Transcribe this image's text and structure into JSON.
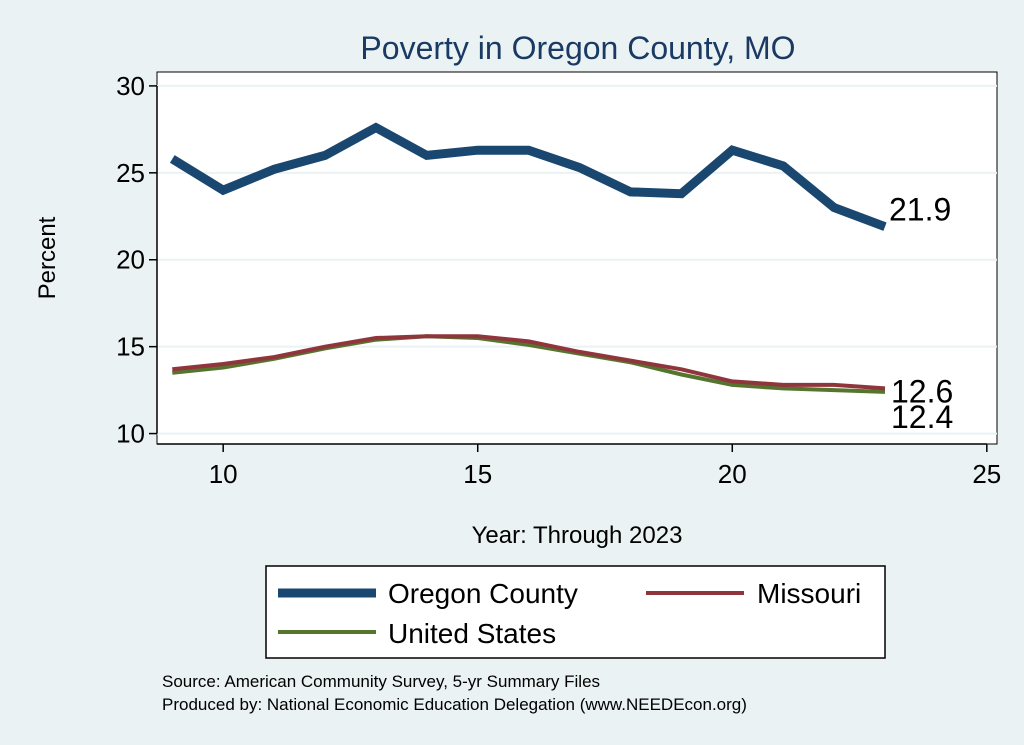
{
  "chart_data": {
    "type": "line",
    "title": "Poverty in Oregon County, MO",
    "xlabel": "Year: Through 2023",
    "ylabel": "Percent",
    "xlim": [
      8.7,
      25.2
    ],
    "ylim": [
      9.4,
      30.8
    ],
    "xticks": [
      10,
      15,
      20,
      25
    ],
    "yticks": [
      10,
      15,
      20,
      25,
      30
    ],
    "grid": true,
    "legend_position": "bottom",
    "series": [
      {
        "name": "Oregon County",
        "color": "#1a476f",
        "width": "thick",
        "x": [
          9,
          10,
          11,
          12,
          13,
          14,
          15,
          16,
          17,
          18,
          19,
          20,
          21,
          22,
          23
        ],
        "y": [
          25.8,
          24.0,
          25.2,
          26.0,
          27.6,
          26.0,
          26.3,
          26.3,
          25.3,
          23.9,
          23.8,
          26.3,
          25.4,
          23.0,
          21.9
        ],
        "end_label": "21.9"
      },
      {
        "name": "Missouri",
        "color": "#90353b",
        "width": "medium",
        "x": [
          9,
          10,
          11,
          12,
          13,
          14,
          15,
          16,
          17,
          18,
          19,
          20,
          21,
          22,
          23
        ],
        "y": [
          13.7,
          14.0,
          14.4,
          15.0,
          15.5,
          15.6,
          15.6,
          15.3,
          14.7,
          14.2,
          13.7,
          13.0,
          12.8,
          12.8,
          12.6
        ],
        "end_label": "12.6"
      },
      {
        "name": "United States",
        "color": "#55752f",
        "width": "medium",
        "x": [
          9,
          10,
          11,
          12,
          13,
          14,
          15,
          16,
          17,
          18,
          19,
          20,
          21,
          22,
          23
        ],
        "y": [
          13.5,
          13.8,
          14.3,
          14.9,
          15.4,
          15.6,
          15.5,
          15.1,
          14.6,
          14.1,
          13.4,
          12.8,
          12.6,
          12.5,
          12.4
        ],
        "end_label": "12.4"
      }
    ]
  },
  "notes": {
    "source": "Source: American Community Survey, 5-yr Summary Files",
    "produced_by": "Produced by: National Economic Education Delegation (www.NEEDEcon.org)"
  }
}
